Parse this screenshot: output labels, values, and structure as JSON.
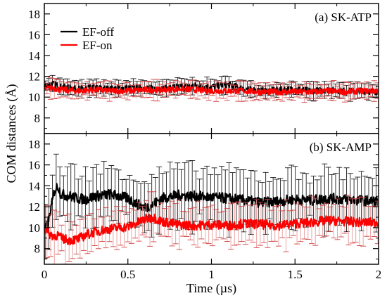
{
  "colors": {
    "ef_off": "#000000",
    "ef_off_error": "#000000",
    "ef_on": "#ff0000",
    "ef_on_error": "#e89a9a",
    "ef_on_error_cap": "#d04040",
    "background": "#ffffff"
  },
  "chart_data": {
    "type": "line",
    "shared_x": {
      "xlabel": "Time (µs)",
      "xlim": [
        0,
        2
      ],
      "xticks": [
        0,
        0.5,
        1,
        1.5,
        2
      ],
      "xtick_labels": [
        "0",
        "0.5",
        "1",
        "1.5",
        "2"
      ]
    },
    "ylabel": "COM distances (Å)",
    "legend": {
      "placement": "top-left",
      "entries": [
        "EF-off",
        "EF-on"
      ]
    },
    "panels": [
      {
        "label": "(a) SK-ATP",
        "ylim": [
          6.5,
          19
        ],
        "yticks": [
          8,
          10,
          12,
          14,
          16,
          18
        ],
        "ytick_labels": [
          "8",
          "10",
          "12",
          "14",
          "16",
          "18"
        ],
        "series": [
          {
            "name": "EF-off",
            "x": [
              0,
              0.05,
              0.1,
              0.2,
              0.3,
              0.4,
              0.5,
              0.6,
              0.7,
              0.8,
              0.9,
              1.0,
              1.1,
              1.2,
              1.3,
              1.4,
              1.5,
              1.6,
              1.7,
              1.8,
              1.9,
              2.0
            ],
            "y": [
              11.1,
              11.3,
              11.0,
              10.8,
              10.9,
              10.8,
              10.9,
              10.9,
              10.8,
              11.0,
              11.1,
              11.0,
              11.2,
              10.8,
              10.6,
              10.7,
              10.8,
              10.6,
              10.7,
              10.6,
              10.6,
              10.5
            ],
            "err": 0.8
          },
          {
            "name": "EF-on",
            "x": [
              0,
              0.05,
              0.1,
              0.2,
              0.3,
              0.4,
              0.5,
              0.6,
              0.7,
              0.8,
              0.9,
              1.0,
              1.1,
              1.2,
              1.3,
              1.4,
              1.5,
              1.6,
              1.7,
              1.8,
              1.9,
              2.0
            ],
            "y": [
              10.8,
              10.9,
              10.7,
              10.6,
              10.7,
              10.6,
              10.6,
              10.7,
              10.7,
              10.8,
              10.7,
              10.6,
              10.6,
              10.6,
              10.5,
              10.5,
              10.5,
              10.5,
              10.6,
              10.5,
              10.6,
              10.6
            ],
            "err": 0.9
          }
        ]
      },
      {
        "label": "(b) SK-AMP",
        "ylim": [
          6.5,
          19
        ],
        "yticks": [
          8,
          10,
          12,
          14,
          16,
          18
        ],
        "ytick_labels": [
          "8",
          "10",
          "12",
          "14",
          "16",
          "18"
        ],
        "series": [
          {
            "name": "EF-off",
            "x": [
              0,
              0.03,
              0.06,
              0.08,
              0.1,
              0.15,
              0.2,
              0.25,
              0.3,
              0.4,
              0.5,
              0.55,
              0.6,
              0.65,
              0.7,
              0.8,
              0.9,
              1.0,
              1.1,
              1.2,
              1.3,
              1.4,
              1.5,
              1.6,
              1.7,
              1.8,
              1.9,
              2.0
            ],
            "y": [
              9.5,
              11.0,
              13.5,
              14.0,
              13.2,
              13.0,
              12.8,
              12.7,
              13.0,
              13.2,
              12.8,
              12.3,
              11.9,
              12.2,
              12.8,
              13.1,
              13.0,
              12.9,
              12.8,
              12.6,
              12.4,
              12.5,
              12.7,
              12.6,
              12.8,
              12.7,
              12.6,
              12.5
            ],
            "err": 3.0
          },
          {
            "name": "EF-on",
            "x": [
              0,
              0.03,
              0.06,
              0.08,
              0.1,
              0.15,
              0.2,
              0.25,
              0.3,
              0.4,
              0.5,
              0.55,
              0.6,
              0.65,
              0.7,
              0.8,
              0.9,
              1.0,
              1.1,
              1.2,
              1.3,
              1.4,
              1.5,
              1.6,
              1.7,
              1.8,
              1.9,
              2.0
            ],
            "y": [
              10.0,
              9.4,
              9.2,
              9.3,
              9.0,
              8.8,
              8.9,
              9.3,
              9.6,
              9.9,
              10.1,
              10.4,
              10.8,
              11.0,
              10.6,
              10.3,
              10.2,
              10.3,
              10.2,
              10.4,
              10.3,
              10.2,
              10.4,
              10.5,
              10.7,
              10.6,
              10.5,
              10.5
            ],
            "err": 2.2
          }
        ]
      }
    ]
  }
}
